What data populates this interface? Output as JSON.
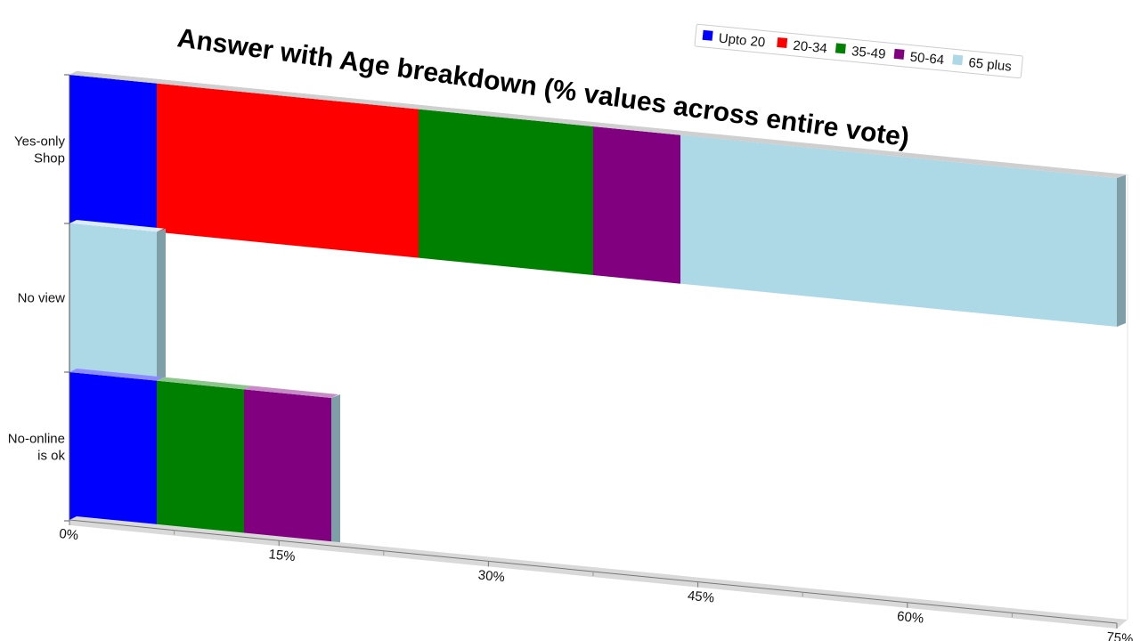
{
  "chart_data": {
    "type": "bar",
    "orientation": "horizontal",
    "stacked": true,
    "title": "Answer with Age breakdown (% values across entire vote)",
    "xlabel": "",
    "ylabel": "",
    "categories": [
      "Yes-only Shop",
      "No view",
      "No-online is ok"
    ],
    "category_lines": [
      [
        "Yes-only",
        "Shop"
      ],
      [
        "No view"
      ],
      [
        "No-online",
        "is ok"
      ]
    ],
    "xlim": [
      0,
      75
    ],
    "xticks": [
      "0%",
      "15%",
      "30%",
      "45%",
      "60%",
      "75%"
    ],
    "series": [
      {
        "name": "Upto 20",
        "color": "#0000ff",
        "values": [
          6.25,
          0,
          6.25
        ]
      },
      {
        "name": "20-34",
        "color": "#ff0000",
        "values": [
          18.75,
          0,
          0
        ]
      },
      {
        "name": "35-49",
        "color": "#008000",
        "values": [
          12.5,
          0,
          6.25
        ]
      },
      {
        "name": "50-64",
        "color": "#800080",
        "values": [
          6.25,
          0,
          6.25
        ]
      },
      {
        "name": "65 plus",
        "color": "#add8e6",
        "values": [
          31.25,
          6.25,
          0
        ]
      }
    ],
    "legend": {
      "position": "top-right"
    },
    "grid": false
  }
}
